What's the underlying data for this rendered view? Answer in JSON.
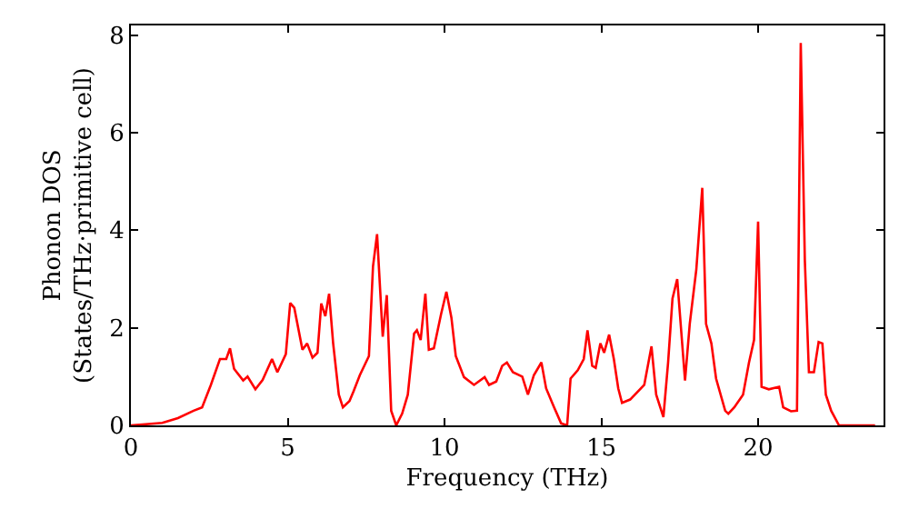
{
  "chart_data": {
    "type": "line",
    "xlabel": "Frequency (THz)",
    "ylabel": "Phonon DOS\n(States/THz·primitive cell)",
    "xlim": [
      0,
      24
    ],
    "ylim": [
      0,
      8.2
    ],
    "xticks": [
      0,
      5,
      10,
      15,
      20
    ],
    "yticks": [
      0,
      2,
      4,
      6,
      8
    ],
    "marker": "none",
    "line_style": "solid",
    "series": [
      {
        "color": "#ff0000",
        "x": [
          0,
          1,
          1.5,
          2,
          2.27,
          2.55,
          2.84,
          3.04,
          3.16,
          3.29,
          3.58,
          3.72,
          3.97,
          4.2,
          4.5,
          4.67,
          4.94,
          5.08,
          5.21,
          5.47,
          5.62,
          5.79,
          5.95,
          6.07,
          6.2,
          6.32,
          6.45,
          6.63,
          6.76,
          6.97,
          7.1,
          7.3,
          7.59,
          7.72,
          7.85,
          8.03,
          8.16,
          8.3,
          8.46,
          8.65,
          8.83,
          9.03,
          9.12,
          9.24,
          9.39,
          9.5,
          9.66,
          9.89,
          10.06,
          10.22,
          10.36,
          10.62,
          10.94,
          11.28,
          11.42,
          11.65,
          11.84,
          11.99,
          12.18,
          12.48,
          12.66,
          12.85,
          13.09,
          13.24,
          13.48,
          13.72,
          13.91,
          14.02,
          14.25,
          14.44,
          14.56,
          14.71,
          14.82,
          14.97,
          15.09,
          15.25,
          15.4,
          15.54,
          15.66,
          15.92,
          16.37,
          16.6,
          16.75,
          16.98,
          17.13,
          17.27,
          17.42,
          17.67,
          17.82,
          18.03,
          18.22,
          18.34,
          18.51,
          18.66,
          18.95,
          19.05,
          19.24,
          19.52,
          19.71,
          19.87,
          20.0,
          20.11,
          20.34,
          20.67,
          20.8,
          21.05,
          21.24,
          21.36,
          21.49,
          21.62,
          21.78,
          21.93,
          22.05,
          22.16,
          22.33,
          22.58,
          23.73
        ],
        "values": [
          0,
          0.05,
          0.15,
          0.3,
          0.37,
          0.83,
          1.36,
          1.36,
          1.58,
          1.16,
          0.92,
          1.0,
          0.74,
          0.93,
          1.36,
          1.09,
          1.46,
          2.51,
          2.41,
          1.55,
          1.68,
          1.39,
          1.49,
          2.5,
          2.24,
          2.7,
          1.68,
          0.63,
          0.37,
          0.5,
          0.7,
          1.03,
          1.42,
          3.26,
          3.92,
          1.82,
          2.67,
          0.3,
          0,
          0.24,
          0.63,
          1.88,
          1.95,
          1.75,
          2.7,
          1.55,
          1.58,
          2.28,
          2.74,
          2.21,
          1.42,
          0.99,
          0.83,
          0.99,
          0.83,
          0.9,
          1.22,
          1.29,
          1.09,
          1.0,
          0.63,
          1.03,
          1.29,
          0.76,
          0.39,
          0.04,
          0,
          0.96,
          1.13,
          1.36,
          1.95,
          1.22,
          1.18,
          1.68,
          1.49,
          1.86,
          1.36,
          0.76,
          0.46,
          0.53,
          0.83,
          1.62,
          0.63,
          0.17,
          1.29,
          2.6,
          3.0,
          0.92,
          2.08,
          3.2,
          4.87,
          2.08,
          1.68,
          0.96,
          0.3,
          0.24,
          0.37,
          0.63,
          1.29,
          1.75,
          4.18,
          0.79,
          0.74,
          0.79,
          0.37,
          0.29,
          0.3,
          7.84,
          3.39,
          1.09,
          1.09,
          1.71,
          1.68,
          0.63,
          0.3,
          0,
          0
        ]
      }
    ]
  }
}
